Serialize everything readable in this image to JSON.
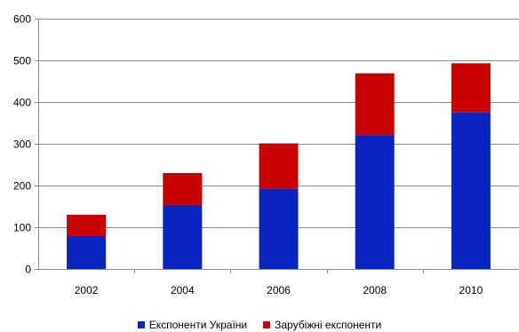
{
  "chart_data": {
    "type": "bar",
    "stacked": true,
    "categories": [
      "2002",
      "2004",
      "2006",
      "2008",
      "2010"
    ],
    "series": [
      {
        "name": "Експоненти України",
        "color": "#0a24c0",
        "values": [
          80,
          154,
          193,
          321,
          376
        ]
      },
      {
        "name": "Зарубіжні експоненти",
        "color": "#c80000",
        "values": [
          50,
          76,
          108,
          148,
          117
        ]
      }
    ],
    "ylim": [
      0,
      600
    ],
    "yticks": [
      "0",
      "100",
      "200",
      "300",
      "400",
      "500",
      "600"
    ],
    "grid": true,
    "legend_position": "bottom"
  }
}
